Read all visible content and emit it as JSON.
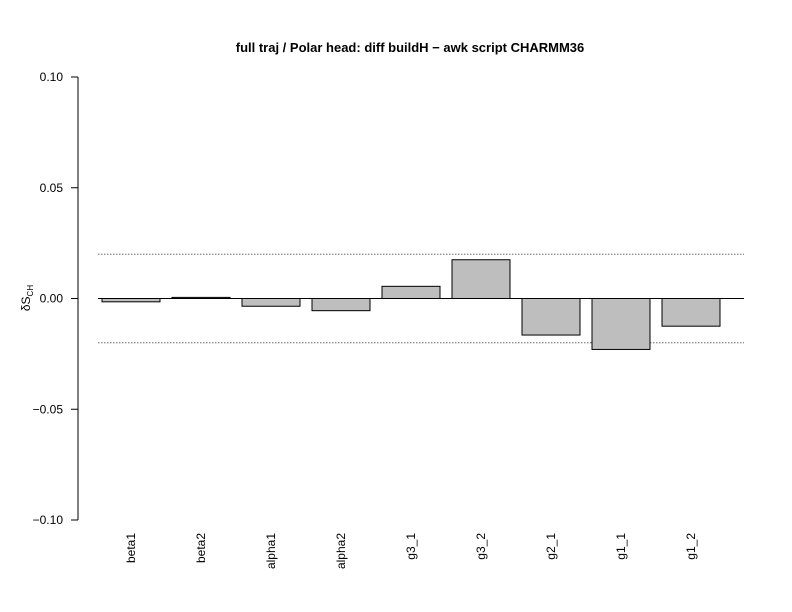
{
  "chart_data": {
    "type": "bar",
    "title": "full traj / Polar head: diff buildH − awk script CHARMM36",
    "ylabel": "δS",
    "ylabel_sub": "CH",
    "xlabel": "",
    "categories": [
      "beta1",
      "beta2",
      "alpha1",
      "alpha2",
      "g3_1",
      "g3_2",
      "g2_1",
      "g1_1",
      "g1_2"
    ],
    "values": [
      -0.0015,
      0.0005,
      -0.0035,
      -0.0055,
      0.0055,
      0.0175,
      -0.0165,
      -0.023,
      -0.0125
    ],
    "ylim": [
      -0.1,
      0.1
    ],
    "yticks": [
      -0.1,
      -0.05,
      0.0,
      0.05,
      0.1
    ],
    "ytick_labels": [
      "−0.10",
      "−0.05",
      "0.00",
      "0.05",
      "0.10"
    ],
    "reference_lines": [
      {
        "y": 0.02,
        "style": "dotted"
      },
      {
        "y": -0.02,
        "style": "dotted"
      },
      {
        "y": 0.0,
        "style": "solid"
      }
    ],
    "bar_color": "#bebebe",
    "grid": false,
    "legend": "none"
  }
}
